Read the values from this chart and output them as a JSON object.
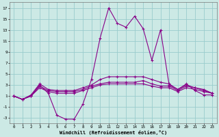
{
  "xlabel": "Windchill (Refroidissement éolien,°C)",
  "background_color": "#cce9e5",
  "grid_color": "#99cccc",
  "line_color": "#880088",
  "xlim": [
    -0.5,
    23.5
  ],
  "ylim": [
    -4,
    18
  ],
  "yticks": [
    -3,
    -1,
    1,
    3,
    5,
    7,
    9,
    11,
    13,
    15,
    17
  ],
  "xticks": [
    0,
    1,
    2,
    3,
    4,
    5,
    6,
    7,
    8,
    9,
    10,
    11,
    12,
    13,
    14,
    15,
    16,
    17,
    18,
    19,
    20,
    21,
    22,
    23
  ],
  "series": [
    [
      1,
      0.4,
      1,
      3,
      1.5,
      -2.5,
      -3.2,
      -3.2,
      -0.5,
      4,
      11.5,
      17,
      14.2,
      13.5,
      15.5,
      13.2,
      7.5,
      13,
      3,
      2.2,
      3.2,
      2,
      1.2,
      1.2
    ],
    [
      1,
      0.4,
      1.2,
      3.2,
      2.2,
      2,
      2,
      2,
      2.5,
      3,
      4,
      4.5,
      4.5,
      4.5,
      4.5,
      4.5,
      4,
      3.5,
      3.2,
      2.2,
      3,
      2.5,
      2.2,
      1.5
    ],
    [
      1,
      0.4,
      1,
      2.8,
      2,
      1.8,
      1.8,
      1.8,
      2.2,
      2.8,
      3.2,
      3.5,
      3.5,
      3.5,
      3.5,
      3.8,
      3.2,
      2.8,
      2.8,
      2,
      2.8,
      2.5,
      2,
      1.5
    ],
    [
      1,
      0.4,
      1,
      2.5,
      1.8,
      1.5,
      1.5,
      1.5,
      2,
      2.5,
      3,
      3.2,
      3.2,
      3.2,
      3.2,
      3.2,
      2.8,
      2.5,
      2.5,
      1.8,
      2.5,
      2.2,
      1.8,
      1.5
    ]
  ]
}
